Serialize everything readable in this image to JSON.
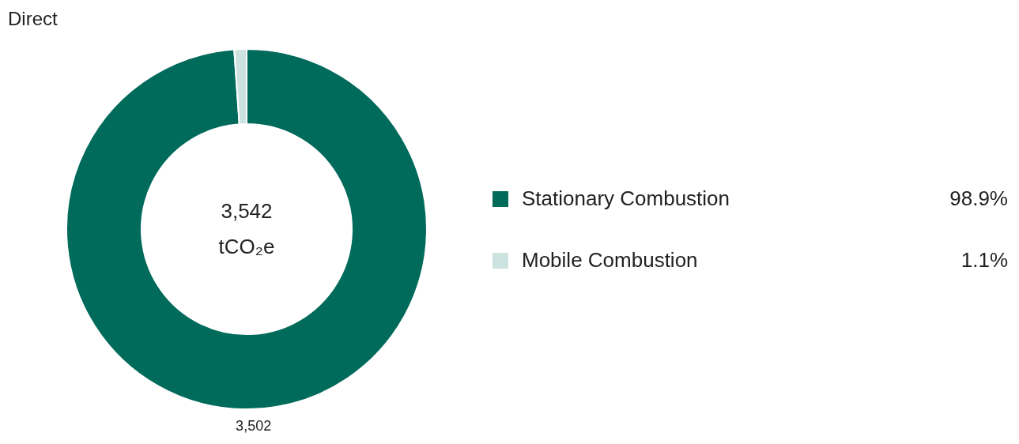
{
  "chart_data": {
    "type": "donut",
    "title": "Direct",
    "categories": [
      "Stationary Combustion",
      "Mobile Combustion"
    ],
    "values": [
      98.9,
      1.1
    ],
    "colors": [
      "#006a5b",
      "#cce3df"
    ],
    "value_labels": [
      "98.9%",
      "1.1%"
    ],
    "legend": "right",
    "annotations": [
      "3,542",
      "tCO₂e",
      {
        "text": "3,502",
        "x": "Stationary Combustion"
      }
    ]
  }
}
